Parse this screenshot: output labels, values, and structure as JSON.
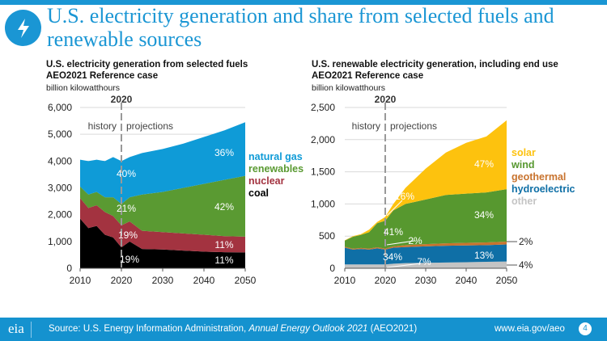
{
  "slide": {
    "title": "U.S. electricity generation and share from selected fuels and renewable sources",
    "icon": "lightning-bolt-icon",
    "page_number": "4",
    "footer": {
      "source_prefix": "Source: U.S. Energy Information Administration, ",
      "source_italic": "Annual Energy Outlook 2021",
      "source_suffix": " (AEO2021)",
      "url": "www.eia.gov/aeo",
      "logo": "eia"
    }
  },
  "chart_data": [
    {
      "type": "area",
      "title": "U.S. electricity generation from selected fuels",
      "subtitle": "AEO2021 Reference case",
      "ylabel": "billion kilowatthours",
      "ylim": [
        0,
        6000
      ],
      "yticks": [
        "0",
        "1,000",
        "2,000",
        "3,000",
        "4,000",
        "5,000",
        "6,000"
      ],
      "xticks": [
        "2010",
        "2020",
        "2030",
        "2040",
        "2050"
      ],
      "divider_year": "2020",
      "history_label": "history",
      "projections_label": "projections",
      "x": [
        2010,
        2012,
        2014,
        2016,
        2018,
        2020,
        2022,
        2025,
        2030,
        2035,
        2040,
        2045,
        2050
      ],
      "series": [
        {
          "name": "coal",
          "color": "#000000",
          "values": [
            1850,
            1500,
            1580,
            1250,
            1150,
            780,
            1000,
            720,
            700,
            660,
            620,
            600,
            590
          ]
        },
        {
          "name": "nuclear",
          "color": "#a33340",
          "values": [
            770,
            750,
            770,
            850,
            800,
            820,
            750,
            680,
            650,
            640,
            630,
            600,
            590
          ]
        },
        {
          "name": "renewables",
          "color": "#5a9a32",
          "values": [
            430,
            500,
            500,
            550,
            700,
            800,
            900,
            1350,
            1500,
            1700,
            1900,
            2100,
            2270
          ]
        },
        {
          "name": "natural gas",
          "color": "#0f9bd7",
          "values": [
            1000,
            1250,
            1200,
            1350,
            1500,
            1600,
            1500,
            1550,
            1600,
            1650,
            1750,
            1850,
            2000
          ]
        }
      ],
      "legend_order": [
        "natural gas",
        "renewables",
        "nuclear",
        "coal"
      ],
      "annotations": [
        "36%",
        "40%",
        "21%",
        "42%",
        "19%",
        "11%",
        "19%",
        "11%"
      ]
    },
    {
      "type": "area",
      "title": "U.S. renewable electricity generation, including end use",
      "subtitle": "AEO2021 Reference case",
      "ylabel": "billion kilowatthours",
      "ylim": [
        0,
        2500
      ],
      "yticks": [
        "0",
        "500",
        "1,000",
        "1,500",
        "2,000",
        "2,500"
      ],
      "xticks": [
        "2010",
        "2020",
        "2030",
        "2040",
        "2050"
      ],
      "divider_year": "2020",
      "history_label": "history",
      "projections_label": "projections",
      "x": [
        2010,
        2012,
        2014,
        2016,
        2018,
        2020,
        2022,
        2025,
        2030,
        2035,
        2040,
        2045,
        2050
      ],
      "series": [
        {
          "name": "other",
          "color": "#c4c4c4",
          "values": [
            60,
            60,
            60,
            60,
            60,
            60,
            70,
            80,
            85,
            90,
            95,
            100,
            105
          ]
        },
        {
          "name": "hydroelectric",
          "color": "#0f6fa6",
          "values": [
            260,
            230,
            240,
            230,
            250,
            230,
            250,
            250,
            255,
            260,
            260,
            260,
            265
          ]
        },
        {
          "name": "geothermal",
          "color": "#c8732e",
          "values": [
            15,
            15,
            16,
            16,
            17,
            17,
            20,
            30,
            35,
            38,
            40,
            42,
            45
          ]
        },
        {
          "name": "wind",
          "color": "#57982f",
          "values": [
            95,
            185,
            204,
            254,
            373,
            433,
            560,
            640,
            695,
            752,
            765,
            778,
            815
          ]
        },
        {
          "name": "solar",
          "color": "#fdc20e",
          "values": [
            5,
            10,
            10,
            40,
            20,
            60,
            100,
            250,
            480,
            660,
            790,
            870,
            1070
          ]
        }
      ],
      "legend_order": [
        "solar",
        "wind",
        "geothermal",
        "hydroelectric",
        "other"
      ],
      "annotations": [
        "47%",
        "16%",
        "34%",
        "41%",
        "2%",
        "2%",
        "34%",
        "13%",
        "7%",
        "4%"
      ]
    }
  ]
}
